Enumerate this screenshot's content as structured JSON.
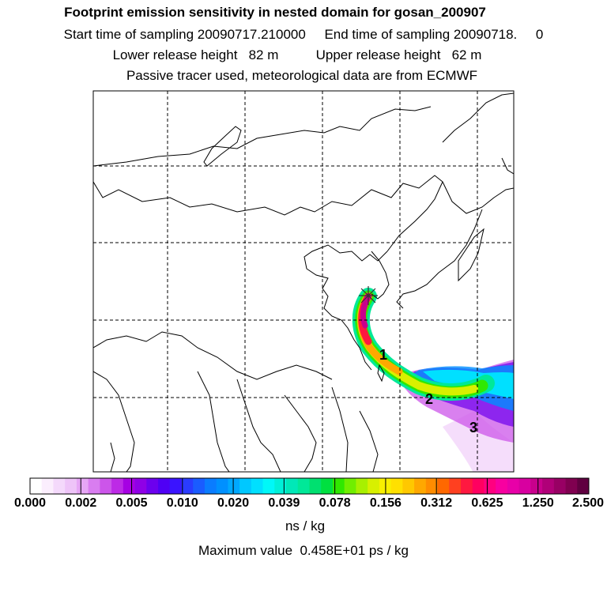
{
  "header": {
    "title": "Footprint emission sensitivity in nested domain for gosan_200907",
    "sampling_line": "Start time of sampling 20090717.210000     End time of sampling 20090718.     0",
    "release_line": "Lower release height   82 m          Upper release height   62 m",
    "tracer_line": "Passive tracer used, meteorological data are from ECMWF"
  },
  "map": {
    "trajectory_markers": [
      "1",
      "2",
      "3"
    ],
    "receptor_marker": "receptor-star-icon"
  },
  "colorbar": {
    "labels": [
      "0.000",
      "0.002",
      "0.005",
      "0.010",
      "0.020",
      "0.039",
      "0.078",
      "0.156",
      "0.312",
      "0.625",
      "1.250",
      "2.500"
    ],
    "colors": [
      "#ffffff",
      "#fbeefd",
      "#f4d9fb",
      "#eec4f8",
      "#e6a6f5",
      "#d97df0",
      "#cc55ea",
      "#bd2ae6",
      "#a600e3",
      "#8f00e6",
      "#6c00ee",
      "#4f00f5",
      "#3a14ff",
      "#2a3cff",
      "#1a5cff",
      "#0a7cff",
      "#0090ff",
      "#00a8ff",
      "#00c8ff",
      "#00e0ff",
      "#00f8f8",
      "#00f0d8",
      "#00e8b8",
      "#00e898",
      "#00e070",
      "#00e040",
      "#30e800",
      "#70ee00",
      "#a8f000",
      "#d8f000",
      "#f8f000",
      "#ffe000",
      "#ffc800",
      "#ffa800",
      "#ff8c00",
      "#ff6800",
      "#ff4020",
      "#ff1840",
      "#ff0060",
      "#ff0080",
      "#f800a0",
      "#e800a8",
      "#d800a0",
      "#c8008c",
      "#b00078",
      "#980064",
      "#800050",
      "#600040"
    ],
    "unit": "ns / kg"
  },
  "footer": {
    "max_value": "Maximum value  0.458E+01 ps / kg"
  }
}
